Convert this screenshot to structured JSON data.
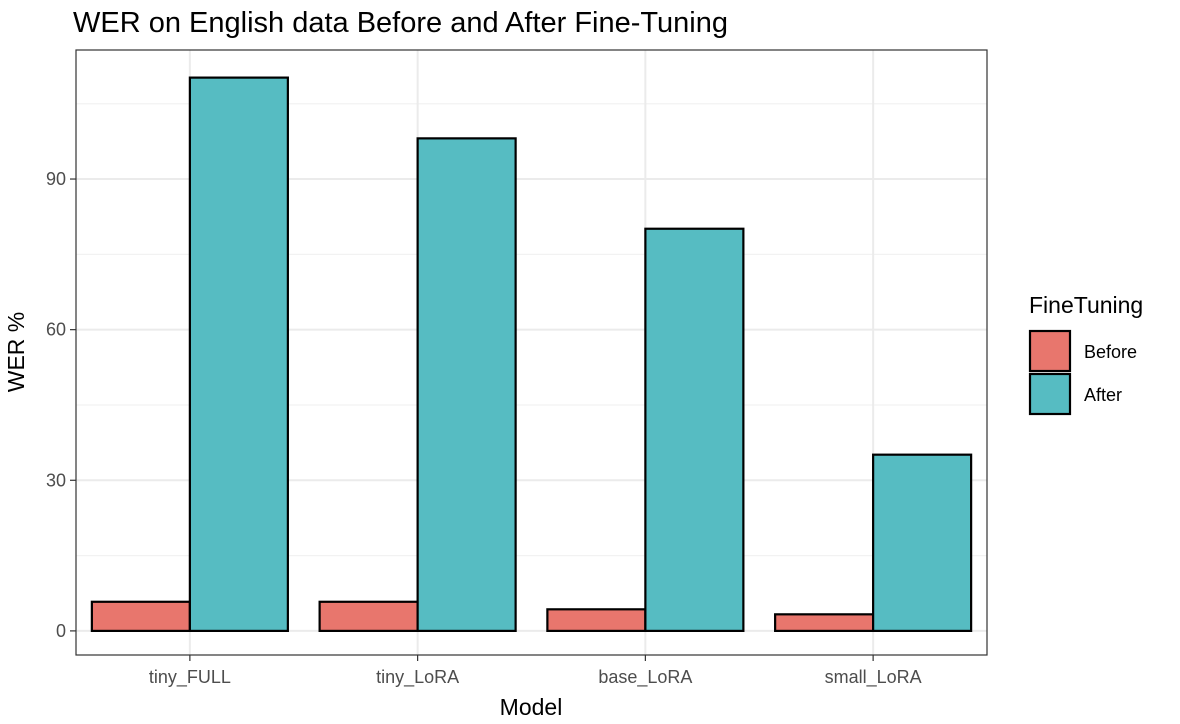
{
  "chart_data": {
    "type": "bar",
    "title": "WER on English data Before and After Fine-Tuning",
    "xlabel": "Model",
    "ylabel": "WER %",
    "categories": [
      "tiny_FULL",
      "tiny_LoRA",
      "base_LoRA",
      "small_LoRA"
    ],
    "series": [
      {
        "name": "Before",
        "values": [
          5.8,
          5.8,
          4.3,
          3.3
        ]
      },
      {
        "name": "After",
        "values": [
          110.2,
          98.1,
          80.1,
          35.1
        ]
      }
    ],
    "ylim": [
      -4.8,
      115.7
    ],
    "yticks": [
      0,
      30,
      60,
      90
    ],
    "grid": true,
    "legend": {
      "title": "FineTuning",
      "placement": "right"
    },
    "colors": {
      "Before": "#E8766D",
      "After": "#56BCC2",
      "bar_outline": "#000000",
      "grid": "#ebebeb",
      "panel_border": "#333333"
    }
  }
}
